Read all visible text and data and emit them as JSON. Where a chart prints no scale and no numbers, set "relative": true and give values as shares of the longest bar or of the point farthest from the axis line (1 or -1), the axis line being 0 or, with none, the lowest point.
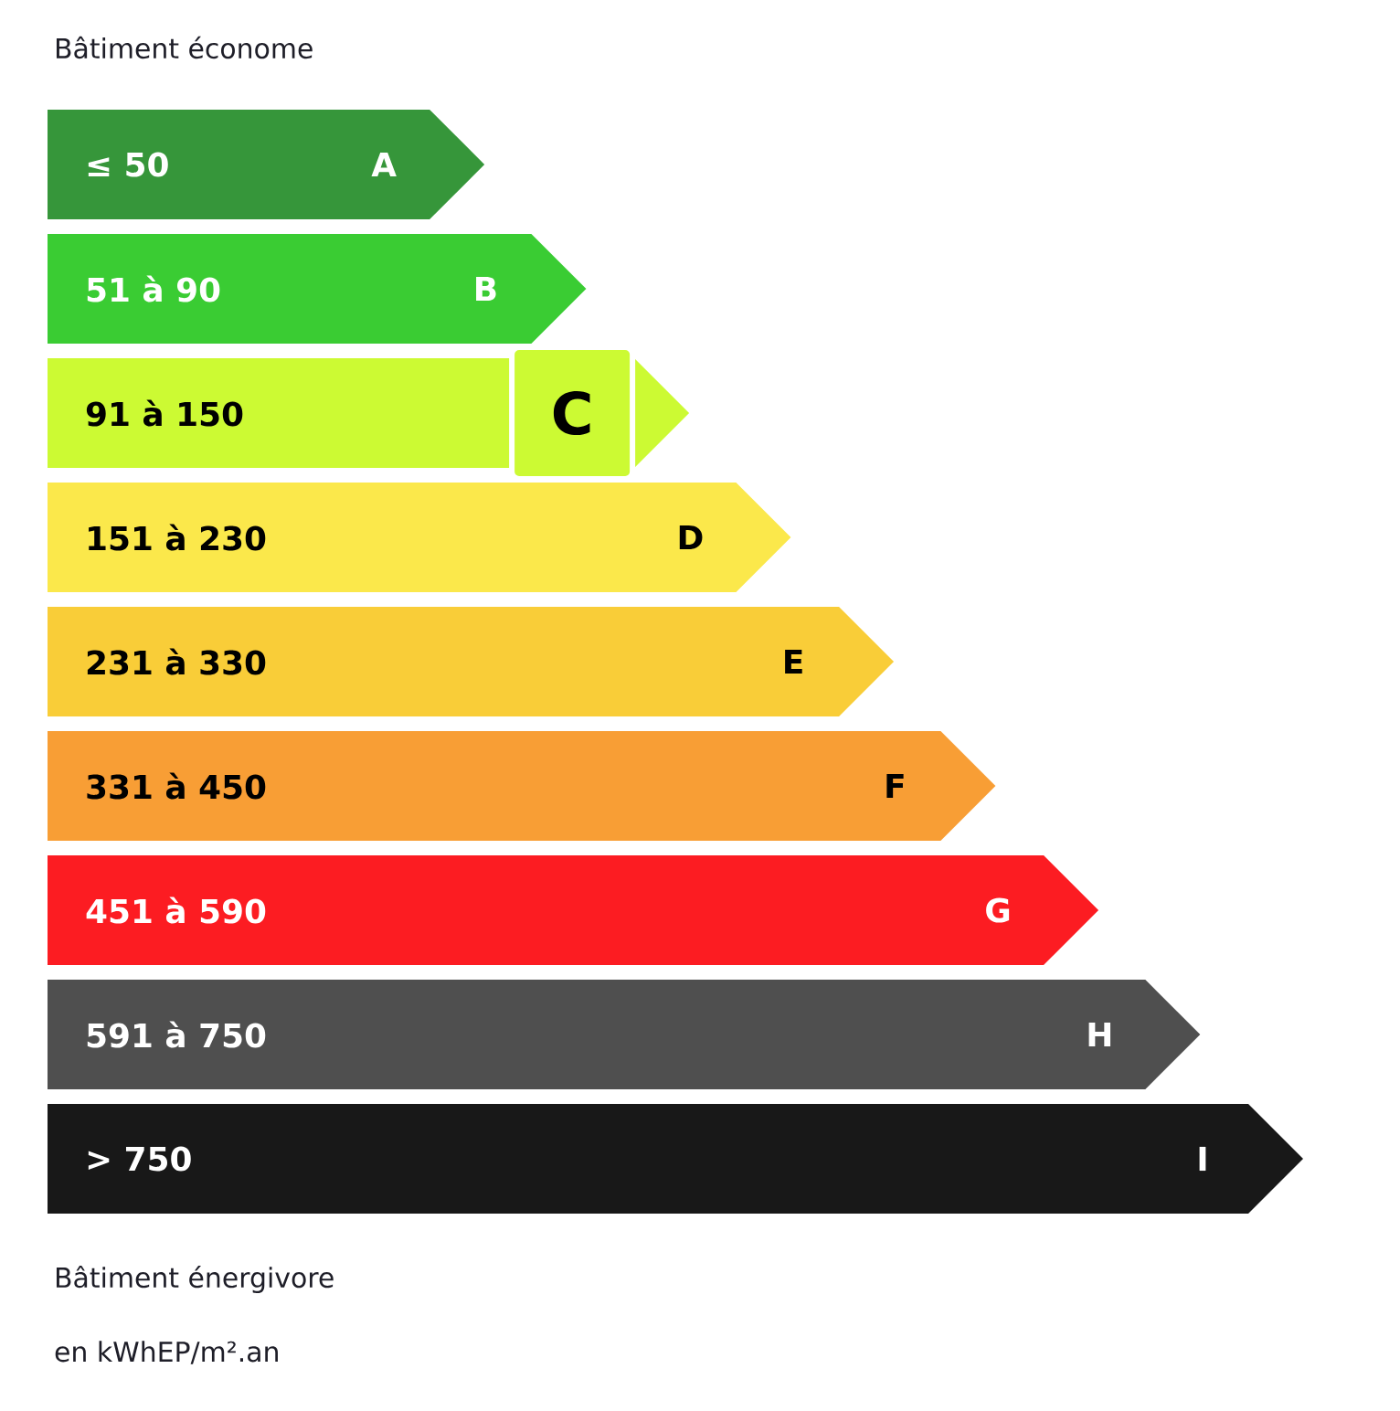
{
  "chart_data": {
    "type": "bar",
    "orientation": "horizontal",
    "relative": true,
    "title": "Bâtiment économe",
    "categories": [
      "A",
      "B",
      "C",
      "D",
      "E",
      "F",
      "G",
      "H",
      "I"
    ],
    "values": [
      0.348,
      0.429,
      0.511,
      0.592,
      0.674,
      0.755,
      0.837,
      0.918,
      1.0
    ],
    "colors": [
      "#36963a",
      "#3acc33",
      "#ccfa33",
      "#fbe84b",
      "#f9cd38",
      "#f89e35",
      "#fc1c22",
      "#4f4f4f",
      "#181818"
    ],
    "needle": "C",
    "annotations": [
      "≤ 50",
      "51 à 90",
      "91 à 150",
      "151 à 230",
      "231 à 330",
      "331 à 450",
      "451 à 590",
      "591 à 750",
      "> 750",
      "Bâtiment énergivore",
      "en kWhEP/m².an"
    ]
  }
}
